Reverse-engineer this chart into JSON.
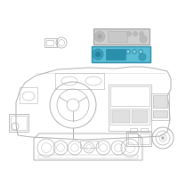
{
  "background_color": "#ffffff",
  "line_color": "#b0b0b0",
  "highlight_color": "#5bbdd4",
  "highlight_border": "#2a8aaa",
  "fig_size": [
    2.0,
    2.0
  ],
  "dpi": 100,
  "radio_fill": "#d0d0d0",
  "radio_border": "#999999",
  "glove_fill": "#e0e0e0",
  "dash_fill": "#f5f5f5"
}
